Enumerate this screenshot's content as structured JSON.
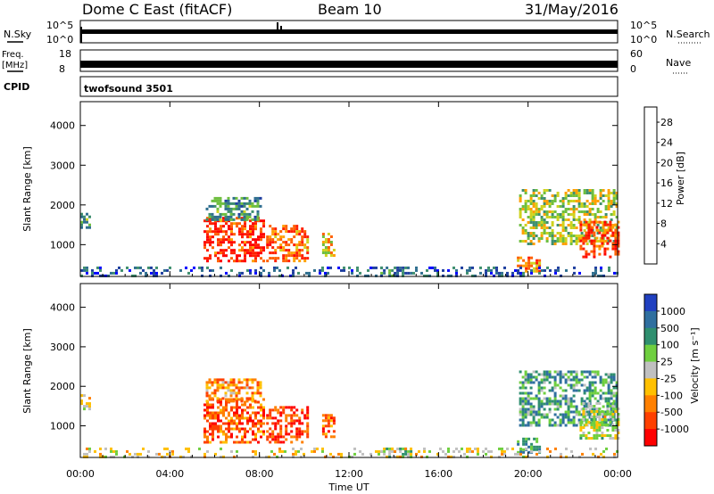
{
  "header": {
    "station": "Dome C East (fitACF)",
    "beam": "Beam 10",
    "date": "31/May/2016"
  },
  "small_panels": {
    "nsky_label": "N.Sky",
    "nsky_ticks": [
      "10^5",
      "10^0"
    ],
    "nsearch_label": "N.Search",
    "freq_label_1": "Freq.",
    "freq_label_2": "[MHz]",
    "freq_ticks": [
      "18",
      "8"
    ],
    "nave_label": "Nave",
    "nave_ticks": [
      "60",
      "0"
    ],
    "cpid_label": "CPID",
    "cpid_value": "twofsound 3501"
  },
  "colors": {
    "power_scale": [
      "#0000ff",
      "#1f3f9f",
      "#2f6f8f",
      "#3f8f6f",
      "#6fbf3f",
      "#cfd31f",
      "#ffa000",
      "#ff6000",
      "#ff2000",
      "#ff0000"
    ],
    "velocity_scale": [
      "#2040c0",
      "#2f6f9f",
      "#2f8f6f",
      "#6fcf3f",
      "#c0c0c0",
      "#ffc000",
      "#ff8000",
      "#ff4000",
      "#ff0000"
    ]
  },
  "chart_data": [
    {
      "type": "heatmap",
      "name": "power",
      "ylabel": "Slant Range [km]",
      "yticks": [
        1000,
        2000,
        3000,
        4000
      ],
      "ylim": [
        200,
        4600
      ],
      "xlim": [
        0,
        24
      ],
      "colorbar_label": "Power [dB]",
      "colorbar_ticks": [
        4,
        8,
        12,
        16,
        20,
        24,
        28
      ],
      "colorbar_range": [
        0,
        31
      ],
      "regions": [
        {
          "t0": 5.5,
          "t1": 8.2,
          "r0": 600,
          "r1": 1700,
          "level": 0.85
        },
        {
          "t0": 5.6,
          "t1": 8.0,
          "r0": 1600,
          "r1": 2200,
          "level": 0.35
        },
        {
          "t0": 8.3,
          "t1": 10.2,
          "r0": 600,
          "r1": 1500,
          "level": 0.75
        },
        {
          "t0": 10.8,
          "t1": 11.3,
          "r0": 700,
          "r1": 1300,
          "level": 0.6
        },
        {
          "t0": 0.0,
          "t1": 0.4,
          "r0": 1400,
          "r1": 1800,
          "level": 0.35
        },
        {
          "t0": 19.6,
          "t1": 24.0,
          "r0": 1000,
          "r1": 2400,
          "level": 0.5
        },
        {
          "t0": 22.3,
          "t1": 24.0,
          "r0": 700,
          "r1": 1600,
          "level": 0.8
        },
        {
          "t0": 19.5,
          "t1": 20.5,
          "r0": 300,
          "r1": 700,
          "level": 0.7
        },
        {
          "t0": 13.4,
          "t1": 14.8,
          "r0": 200,
          "r1": 450,
          "level": 0.3
        },
        {
          "t0": 0.0,
          "t1": 24.0,
          "r0": 200,
          "r1": 450,
          "level": 0.2
        }
      ]
    },
    {
      "type": "heatmap",
      "name": "velocity",
      "xlabel": "Time UT",
      "ylabel": "Slant Range [km]",
      "xticks": [
        "00:00",
        "04:00",
        "08:00",
        "12:00",
        "16:00",
        "20:00",
        "00:00"
      ],
      "yticks": [
        1000,
        2000,
        3000,
        4000
      ],
      "ylim": [
        200,
        4600
      ],
      "xlim": [
        0,
        24
      ],
      "colorbar_label": "Velocity [m s⁻¹]",
      "colorbar_ticks": [
        "1000",
        "500",
        "100",
        "25",
        "-25",
        "-100",
        "-500",
        "-1000"
      ],
      "regions": [
        {
          "t0": 5.5,
          "t1": 8.2,
          "r0": 600,
          "r1": 1700,
          "level": 0.8
        },
        {
          "t0": 5.6,
          "t1": 8.0,
          "r0": 1600,
          "r1": 2200,
          "level": 0.7
        },
        {
          "t0": 8.3,
          "t1": 10.2,
          "r0": 600,
          "r1": 1500,
          "level": 0.85
        },
        {
          "t0": 10.8,
          "t1": 11.3,
          "r0": 700,
          "r1": 1300,
          "level": 0.75
        },
        {
          "t0": 0.0,
          "t1": 0.4,
          "r0": 1400,
          "r1": 1800,
          "level": 0.6
        },
        {
          "t0": 19.6,
          "t1": 24.0,
          "r0": 1000,
          "r1": 2400,
          "level": 0.3
        },
        {
          "t0": 22.3,
          "t1": 24.0,
          "r0": 700,
          "r1": 1600,
          "level": 0.5
        },
        {
          "t0": 19.5,
          "t1": 20.5,
          "r0": 300,
          "r1": 700,
          "level": 0.3
        },
        {
          "t0": 13.4,
          "t1": 14.8,
          "r0": 200,
          "r1": 450,
          "level": 0.4
        },
        {
          "t0": 0.0,
          "t1": 24.0,
          "r0": 200,
          "r1": 450,
          "level": 0.55
        }
      ]
    }
  ]
}
